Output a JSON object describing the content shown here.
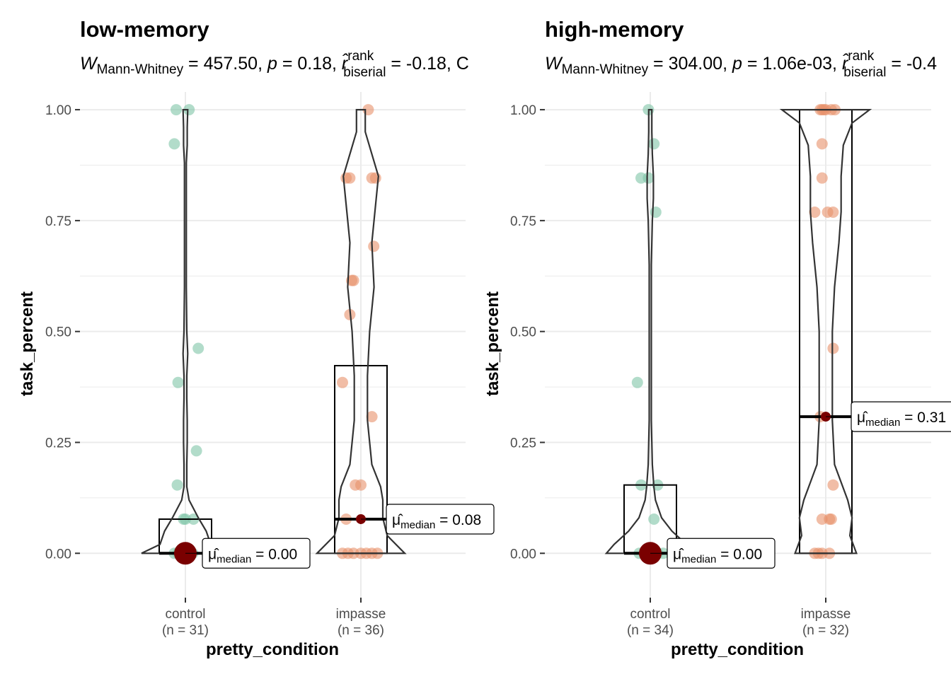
{
  "colors": {
    "control": "#7fc4a6",
    "impasse": "#e8916a",
    "impasse_dark": "#d95f02",
    "median_point": "#7a0000",
    "grid": "#ebebeb",
    "axis_text": "#4d4d4d"
  },
  "chart_data": [
    {
      "type": "violin-box-jitter",
      "title": "low-memory",
      "subtitle": {
        "stat_symbol": "W",
        "stat_subscript": "Mann-Whitney",
        "stat_value": " = 457.50, ",
        "p_symbol": "p",
        "p_value": " = 0.18, ",
        "r_symbol": "r̂",
        "r_superscript": "rank",
        "r_subscript": "biserial",
        "r_value": " = -0.18, C"
      },
      "xlabel": "pretty_condition",
      "ylabel": "task_percent",
      "ylim": [
        -0.1,
        1.04
      ],
      "yticks": [
        {
          "value": 0.0,
          "label": "0.00"
        },
        {
          "value": 0.25,
          "label": "0.25"
        },
        {
          "value": 0.5,
          "label": "0.50"
        },
        {
          "value": 0.75,
          "label": "0.75"
        },
        {
          "value": 1.0,
          "label": "1.00"
        }
      ],
      "groups": [
        {
          "name": "control",
          "n_label": "(n = 31)",
          "box": {
            "q1": 0.0,
            "median": 0.0,
            "q3": 0.077
          },
          "median_label": {
            "symbol": "μ̂",
            "subscript": "median",
            "value": " = 0.00"
          },
          "violin": [
            [
              0.0,
              0.95
            ],
            [
              0.02,
              0.55
            ],
            [
              0.05,
              0.45
            ],
            [
              0.08,
              0.28
            ],
            [
              0.12,
              0.08
            ],
            [
              0.15,
              0.03
            ],
            [
              0.2,
              0.03
            ],
            [
              0.25,
              0.04
            ],
            [
              0.3,
              0.04
            ],
            [
              0.35,
              0.03
            ],
            [
              0.4,
              0.03
            ],
            [
              0.45,
              0.05
            ],
            [
              0.5,
              0.03
            ],
            [
              0.6,
              0.02
            ],
            [
              0.7,
              0.02
            ],
            [
              0.8,
              0.02
            ],
            [
              0.88,
              0.02
            ],
            [
              0.92,
              0.04
            ],
            [
              0.96,
              0.04
            ],
            [
              1.0,
              0.05
            ]
          ],
          "points": [
            {
              "dx": -0.25,
              "y": 1.0
            },
            {
              "dx": 0.1,
              "y": 1.0
            },
            {
              "dx": -0.3,
              "y": 0.923
            },
            {
              "dx": 0.35,
              "y": 0.462
            },
            {
              "dx": -0.2,
              "y": 0.385
            },
            {
              "dx": 0.3,
              "y": 0.231
            },
            {
              "dx": -0.22,
              "y": 0.154
            },
            {
              "dx": 0.0,
              "y": 0.077
            },
            {
              "dx": 0.22,
              "y": 0.077
            },
            {
              "dx": -0.05,
              "y": 0.077
            },
            {
              "dx": -0.3,
              "y": 0.0
            },
            {
              "dx": -0.1,
              "y": 0.0
            },
            {
              "dx": 0.2,
              "y": 0.0
            },
            {
              "dx": 0.0,
              "y": 0.0
            },
            {
              "dx": -0.2,
              "y": 0.0
            }
          ]
        },
        {
          "name": "impasse",
          "n_label": "(n = 36)",
          "box": {
            "q1": 0.0,
            "median": 0.077,
            "q3": 0.423
          },
          "median_label": {
            "symbol": "μ̂",
            "subscript": "median",
            "value": " = 0.08"
          },
          "violin": [
            [
              0.0,
              0.2
            ],
            [
              0.04,
              0.12
            ],
            [
              0.08,
              0.1
            ],
            [
              0.12,
              0.1
            ],
            [
              0.15,
              0.09
            ],
            [
              0.2,
              0.05
            ],
            [
              0.3,
              0.03
            ],
            [
              0.4,
              0.03
            ],
            [
              0.5,
              0.04
            ],
            [
              0.6,
              0.06
            ],
            [
              0.7,
              0.05
            ],
            [
              0.8,
              0.07
            ],
            [
              0.85,
              0.08
            ],
            [
              0.9,
              0.05
            ],
            [
              0.95,
              0.02
            ],
            [
              1.0,
              0.02
            ]
          ],
          "points": [
            {
              "dx": 0.2,
              "y": 1.0
            },
            {
              "dx": -0.4,
              "y": 0.846
            },
            {
              "dx": -0.3,
              "y": 0.846
            },
            {
              "dx": 0.3,
              "y": 0.846
            },
            {
              "dx": 0.4,
              "y": 0.846
            },
            {
              "dx": 0.35,
              "y": 0.692
            },
            {
              "dx": -0.2,
              "y": 0.615
            },
            {
              "dx": -0.25,
              "y": 0.615
            },
            {
              "dx": -0.3,
              "y": 0.538
            },
            {
              "dx": -0.5,
              "y": 0.385
            },
            {
              "dx": 0.3,
              "y": 0.308
            },
            {
              "dx": -0.15,
              "y": 0.154
            },
            {
              "dx": 0.0,
              "y": 0.154
            },
            {
              "dx": -0.4,
              "y": 0.077
            },
            {
              "dx": -0.5,
              "y": 0.0
            },
            {
              "dx": -0.35,
              "y": 0.0
            },
            {
              "dx": -0.2,
              "y": 0.0
            },
            {
              "dx": 0.0,
              "y": 0.0
            },
            {
              "dx": 0.15,
              "y": 0.0
            },
            {
              "dx": 0.3,
              "y": 0.0
            },
            {
              "dx": 0.45,
              "y": 0.0
            }
          ]
        }
      ]
    },
    {
      "type": "violin-box-jitter",
      "title": "high-memory",
      "subtitle": {
        "stat_symbol": "W",
        "stat_subscript": "Mann-Whitney",
        "stat_value": " = 304.00, ",
        "p_symbol": "p",
        "p_value": " = 1.06e-03, ",
        "r_symbol": "r̂",
        "r_superscript": "rank",
        "r_subscript": "biserial",
        "r_value": " = -0.4"
      },
      "xlabel": "pretty_condition",
      "ylabel": "task_percent",
      "ylim": [
        -0.1,
        1.04
      ],
      "yticks": [
        {
          "value": 0.0,
          "label": "0.00"
        },
        {
          "value": 0.25,
          "label": "0.25"
        },
        {
          "value": 0.5,
          "label": "0.50"
        },
        {
          "value": 0.75,
          "label": "0.75"
        },
        {
          "value": 1.0,
          "label": "1.00"
        }
      ],
      "groups": [
        {
          "name": "control",
          "n_label": "(n = 34)",
          "box": {
            "q1": 0.0,
            "median": 0.0,
            "q3": 0.154
          },
          "median_label": {
            "symbol": "μ̂",
            "subscript": "median",
            "value": " = 0.00"
          },
          "violin": [
            [
              0.0,
              0.85
            ],
            [
              0.02,
              0.7
            ],
            [
              0.05,
              0.42
            ],
            [
              0.08,
              0.22
            ],
            [
              0.12,
              0.1
            ],
            [
              0.15,
              0.07
            ],
            [
              0.2,
              0.04
            ],
            [
              0.25,
              0.03
            ],
            [
              0.3,
              0.02
            ],
            [
              0.38,
              0.02
            ],
            [
              0.45,
              0.02
            ],
            [
              0.55,
              0.02
            ],
            [
              0.65,
              0.02
            ],
            [
              0.75,
              0.04
            ],
            [
              0.8,
              0.06
            ],
            [
              0.85,
              0.06
            ],
            [
              0.9,
              0.04
            ],
            [
              0.95,
              0.03
            ],
            [
              1.0,
              0.03
            ]
          ],
          "points": [
            {
              "dx": -0.05,
              "y": 1.0
            },
            {
              "dx": 0.1,
              "y": 0.923
            },
            {
              "dx": -0.25,
              "y": 0.846
            },
            {
              "dx": -0.05,
              "y": 0.846
            },
            {
              "dx": 0.15,
              "y": 0.769
            },
            {
              "dx": -0.35,
              "y": 0.385
            },
            {
              "dx": -0.25,
              "y": 0.154
            },
            {
              "dx": 0.2,
              "y": 0.154
            },
            {
              "dx": 0.1,
              "y": 0.077
            },
            {
              "dx": -0.3,
              "y": 0.0
            },
            {
              "dx": -0.15,
              "y": 0.0
            },
            {
              "dx": 0.05,
              "y": 0.0
            },
            {
              "dx": 0.2,
              "y": 0.0
            },
            {
              "dx": 0.35,
              "y": 0.0
            }
          ]
        },
        {
          "name": "impasse",
          "n_label": "(n = 32)",
          "box": {
            "q1": 0.0,
            "median": 0.308,
            "q3": 1.0
          },
          "median_label": {
            "symbol": "μ̂",
            "subscript": "median",
            "value": " = 0.31"
          },
          "violin": [
            [
              0.0,
              0.14
            ],
            [
              0.04,
              0.11
            ],
            [
              0.08,
              0.12
            ],
            [
              0.12,
              0.1
            ],
            [
              0.2,
              0.04
            ],
            [
              0.3,
              0.03
            ],
            [
              0.4,
              0.03
            ],
            [
              0.5,
              0.03
            ],
            [
              0.6,
              0.04
            ],
            [
              0.7,
              0.06
            ],
            [
              0.77,
              0.07
            ],
            [
              0.85,
              0.07
            ],
            [
              0.92,
              0.08
            ],
            [
              0.97,
              0.12
            ],
            [
              1.0,
              0.2
            ]
          ],
          "points": [
            {
              "dx": -0.15,
              "y": 1.0
            },
            {
              "dx": -0.05,
              "y": 1.0
            },
            {
              "dx": 0.0,
              "y": 1.0
            },
            {
              "dx": 0.15,
              "y": 1.0
            },
            {
              "dx": 0.25,
              "y": 1.0
            },
            {
              "dx": -0.1,
              "y": 1.0
            },
            {
              "dx": -0.1,
              "y": 0.923
            },
            {
              "dx": -0.1,
              "y": 0.846
            },
            {
              "dx": -0.3,
              "y": 0.769
            },
            {
              "dx": 0.05,
              "y": 0.769
            },
            {
              "dx": 0.2,
              "y": 0.769
            },
            {
              "dx": 0.2,
              "y": 0.462
            },
            {
              "dx": -0.15,
              "y": 0.308
            },
            {
              "dx": 0.2,
              "y": 0.154
            },
            {
              "dx": -0.1,
              "y": 0.077
            },
            {
              "dx": 0.1,
              "y": 0.077
            },
            {
              "dx": 0.15,
              "y": 0.077
            },
            {
              "dx": -0.3,
              "y": 0.0
            },
            {
              "dx": -0.2,
              "y": 0.0
            },
            {
              "dx": -0.1,
              "y": 0.0
            },
            {
              "dx": 0.1,
              "y": 0.0
            }
          ]
        }
      ]
    }
  ]
}
